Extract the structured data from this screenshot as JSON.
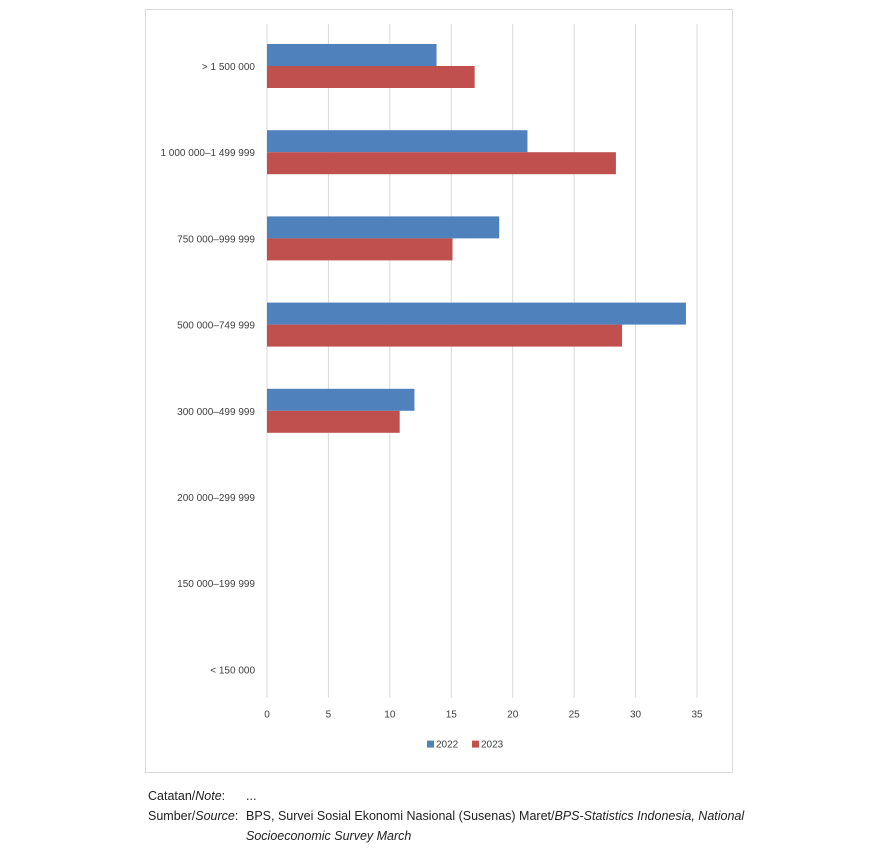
{
  "chart_data": {
    "type": "bar",
    "orientation": "horizontal",
    "title": "",
    "xlabel": "",
    "ylabel": "",
    "categories": [
      "> 1 500 000",
      "1 000 000–1 499 999",
      "750 000–999 999",
      "500 000–749 999",
      "300 000–499 999",
      "200 000–299 999",
      "150 000–199 999",
      "< 150 000"
    ],
    "series": [
      {
        "name": "2022",
        "color": "#4f81bd",
        "values": [
          13.8,
          21.2,
          18.9,
          34.1,
          12.0,
          0,
          0,
          0
        ]
      },
      {
        "name": "2023",
        "color": "#c0504d",
        "values": [
          16.9,
          28.4,
          15.1,
          28.9,
          10.8,
          0,
          0,
          0
        ]
      }
    ],
    "xlim": [
      0,
      35
    ],
    "x_ticks": [
      "0",
      "5",
      "10",
      "15",
      "20",
      "25",
      "30",
      "35"
    ],
    "tick_values": [
      0,
      5,
      10,
      15,
      20,
      25,
      30,
      35
    ],
    "grid": true,
    "legend_position": "bottom"
  },
  "notes": {
    "note_label_plain": "Catatan/",
    "note_label_italic": "Note",
    "note_label_colon": ":",
    "note_text": "...",
    "source_label_plain": "Sumber/",
    "source_label_italic": "Source",
    "source_label_colon": ":",
    "source_text_plain": "BPS, Survei Sosial Ekonomi Nasional (Susenas) Maret/",
    "source_text_italic": "BPS-Statistics Indonesia, National Socioeconomic Survey March"
  }
}
